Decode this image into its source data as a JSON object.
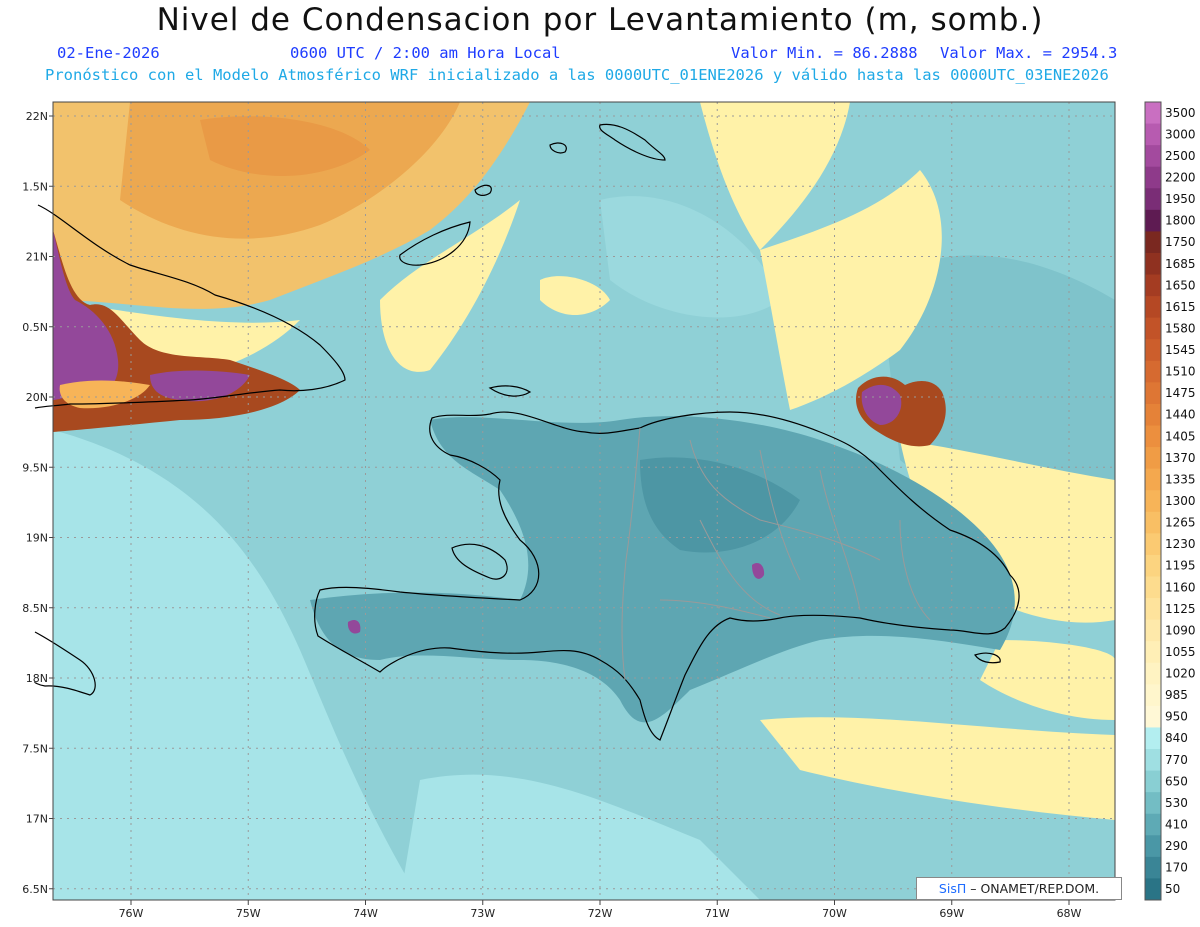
{
  "title": "Nivel de Condensacion por Levantamiento (m, somb.)",
  "subtitle": {
    "date": "02-Ene-2026",
    "time": "0600 UTC / 2:00 am Hora Local",
    "min": "Valor Min. = 86.2888",
    "max": "Valor Max. = 2954.3"
  },
  "model_line": "Pronóstico con el Modelo Atmosférico WRF inicializado a las 0000UTC_01ENE2026 y válido hasta las  0000UTC_03ENE2026",
  "credit": {
    "sis": "SisΠ",
    "rest": "– ONAMET/REP.DOM."
  },
  "lat_labels": [
    "22N",
    "1.5N",
    "21N",
    "0.5N",
    "20N",
    "9.5N",
    "19N",
    "8.5N",
    "18N",
    "7.5N",
    "17N",
    "6.5N"
  ],
  "lon_labels": [
    "76W",
    "75W",
    "74W",
    "73W",
    "72W",
    "71W",
    "70W",
    "69W",
    "68W"
  ],
  "colorbar": {
    "levels": [
      "3500",
      "3000",
      "2500",
      "2200",
      "1950",
      "1800",
      "1750",
      "1685",
      "1650",
      "1615",
      "1580",
      "1545",
      "1510",
      "1475",
      "1440",
      "1405",
      "1370",
      "1335",
      "1300",
      "1265",
      "1230",
      "1195",
      "1160",
      "1125",
      "1090",
      "1055",
      "1020",
      "985",
      "950",
      "840",
      "770",
      "650",
      "530",
      "410",
      "290",
      "170",
      "50"
    ],
    "colors": [
      "#c96fc1",
      "#b75bb0",
      "#a34a9e",
      "#8e3a8a",
      "#7a2d76",
      "#5e1b52",
      "#7a2820",
      "#8f3120",
      "#a43c22",
      "#b54824",
      "#c25328",
      "#cc5e2c",
      "#d66a30",
      "#de7634",
      "#e58238",
      "#ec8f3e",
      "#f09c45",
      "#f4a84e",
      "#f7b458",
      "#f9bf64",
      "#fbca72",
      "#fcd480",
      "#fddc8e",
      "#fee39c",
      "#fee9aa",
      "#ffefb6",
      "#fff3c2",
      "#fff6cc",
      "#fff8d6",
      "#b3eef0",
      "#9fdfe2",
      "#89cfd3",
      "#73bdc4",
      "#5eaab5",
      "#4a97a6",
      "#3a8596",
      "#2a7486"
    ]
  },
  "colors": {
    "sea_base": "#8fd0d6",
    "land": "#5ea6b2",
    "dry_high": "#f0b860",
    "yellow": "#fff2a8",
    "purple": "#93489a",
    "brown": "#a8491f",
    "coast": "#000000",
    "province": "#9a9a9a",
    "title_blue": "#1e3cff",
    "line_cyan": "#1fa9e6"
  }
}
